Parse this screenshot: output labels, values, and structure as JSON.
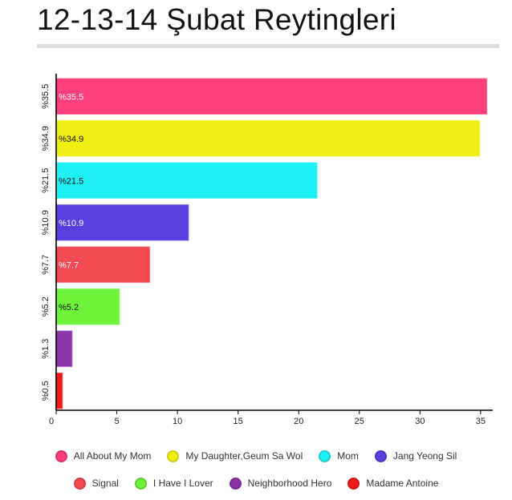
{
  "page": {
    "title": "12-13-14 Şubat Reytingleri"
  },
  "chart_data": {
    "type": "bar",
    "orientation": "horizontal",
    "title": "12-13-14 Şubat Reytingleri",
    "xlabel": "",
    "ylabel": "",
    "xlim": [
      0,
      36
    ],
    "x_ticks": [
      0,
      5,
      10,
      15,
      20,
      25,
      30,
      35
    ],
    "categories": [
      "%35.5",
      "%34.9",
      "%21.5",
      "%10.9",
      "%7.7",
      "%5.2",
      "%1.3",
      "%0.5"
    ],
    "values": [
      35.5,
      34.9,
      21.5,
      10.9,
      7.7,
      5.2,
      1.3,
      0.5
    ],
    "data_labels": [
      "%35.5",
      "%34.9",
      "%21.5",
      "%10.9",
      "%7.7",
      "%5.2",
      "",
      ""
    ],
    "series_names": [
      "All About My Mom",
      "My Daughter,Geum Sa Wol",
      "Mom",
      "Jang Yeong Sil",
      "Signal",
      "I Have I Lover",
      "Neighborhood Hero",
      "Madame Antoine"
    ],
    "colors": [
      "#ff3e7a",
      "#f0ef12",
      "#1ff0f4",
      "#5a3fe0",
      "#f24a52",
      "#6ef23a",
      "#8a35a8",
      "#f01a1a"
    ],
    "label_colors": [
      "#ffffff",
      "#111111",
      "#111111",
      "#ffffff",
      "#ffffff",
      "#111111",
      "#ffffff",
      "#ffffff"
    ],
    "legend_position": "bottom",
    "grid": false
  }
}
